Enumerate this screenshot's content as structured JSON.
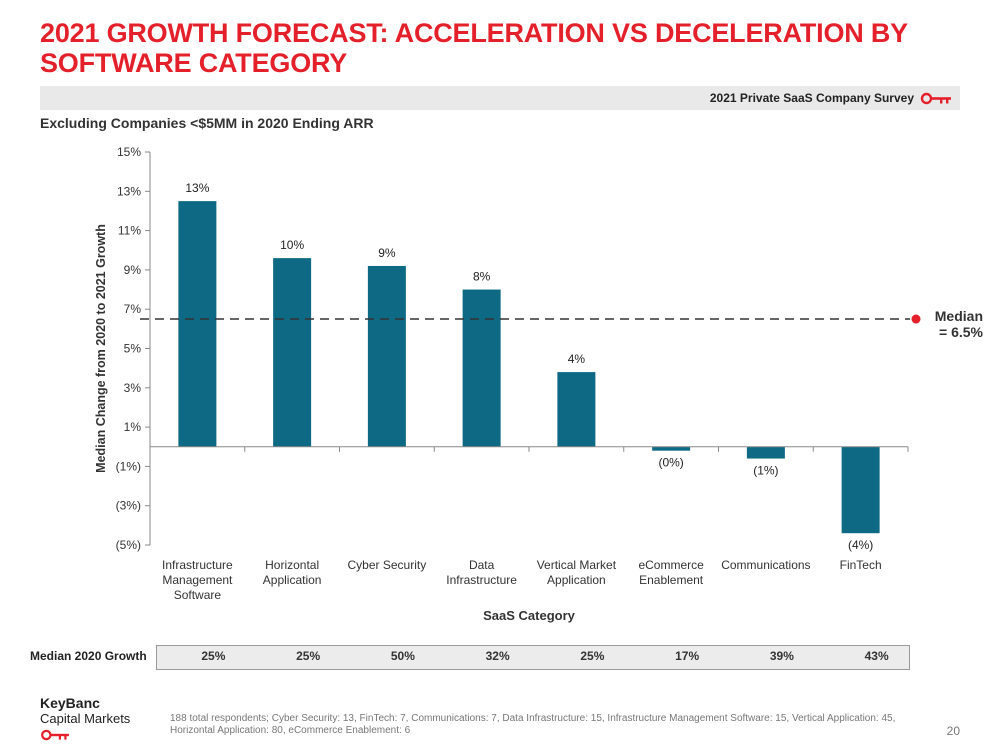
{
  "page": {
    "title": "2021 GROWTH FORECAST: ACCELERATION VS DECELERATION BY SOFTWARE CATEGORY",
    "survey_label": "2021 Private SaaS Company Survey",
    "subtitle": "Excluding Companies <$5MM in 2020 Ending ARR",
    "brand_color": "#e4202b",
    "logo_line1": "KeyBanc",
    "logo_line2": "Capital Markets",
    "footnote": "188 total respondents; Cyber Security: 13, FinTech: 7, Communications: 7, Data Infrastructure: 15, Infrastructure Management Software: 15, Vertical Application: 45, Horizontal Application: 80, eCommerce Enablement: 6",
    "page_number": "20",
    "icons": [
      "key-icon"
    ]
  },
  "growth_row": {
    "label": "Median 2020 Growth",
    "values": [
      "25%",
      "25%",
      "50%",
      "32%",
      "25%",
      "17%",
      "39%",
      "43%"
    ]
  },
  "chart_data": {
    "type": "bar",
    "categories": [
      [
        "Infrastructure",
        "Management",
        "Software"
      ],
      [
        "Horizontal",
        "Application"
      ],
      [
        "Cyber Security"
      ],
      [
        "Data",
        "Infrastructure"
      ],
      [
        "Vertical Market",
        "Application"
      ],
      [
        "eCommerce",
        "Enablement"
      ],
      [
        "Communications"
      ],
      [
        "FinTech"
      ]
    ],
    "values": [
      12.5,
      9.6,
      9.2,
      8.0,
      3.8,
      -0.2,
      -0.6,
      -4.4
    ],
    "data_labels": [
      "13%",
      "10%",
      "9%",
      "8%",
      "4%",
      "(0%)",
      "(1%)",
      "(4%)"
    ],
    "bar_color": "#0e6a84",
    "xlabel": "SaaS Category",
    "ylabel": "Median Change from 2020  to 2021 Growth",
    "ylim": [
      -5,
      15
    ],
    "yticks": [
      15,
      13,
      11,
      9,
      7,
      5,
      3,
      1,
      -1,
      -3,
      -5
    ],
    "ytick_labels": [
      "15%",
      "13%",
      "11%",
      "9%",
      "7%",
      "5%",
      "3%",
      "1%",
      "(1%)",
      "(3%)",
      "(5%)"
    ],
    "median_line": {
      "value": 6.5,
      "label_line1": "Median",
      "label_line2": "= 6.5%",
      "marker_color": "#e4202b"
    },
    "grid": false
  }
}
